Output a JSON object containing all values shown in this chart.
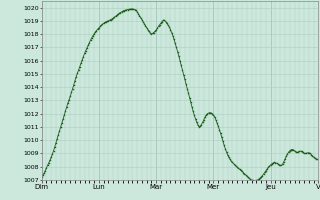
{
  "ylim": [
    1007,
    1020.5
  ],
  "yticks": [
    1007,
    1008,
    1009,
    1010,
    1011,
    1012,
    1013,
    1014,
    1015,
    1016,
    1017,
    1018,
    1019,
    1020
  ],
  "xtick_labels": [
    "Dim",
    "Lun",
    "Mar",
    "Mer",
    "Jeu",
    "V"
  ],
  "xtick_positions": [
    0,
    48,
    96,
    144,
    192,
    232
  ],
  "background_color": "#cce8dd",
  "grid_color": "#aaccbb",
  "line_color": "#1a5c1a",
  "marker_color": "#1a5c1a",
  "vline_color": "#8899aa",
  "pressure_data": [
    1007.2,
    1007.35,
    1007.5,
    1007.7,
    1007.9,
    1008.1,
    1008.3,
    1008.5,
    1008.7,
    1008.95,
    1009.2,
    1009.5,
    1009.8,
    1010.1,
    1010.4,
    1010.7,
    1011.0,
    1011.3,
    1011.6,
    1011.9,
    1012.2,
    1012.5,
    1012.8,
    1013.05,
    1013.3,
    1013.6,
    1013.9,
    1014.2,
    1014.5,
    1014.8,
    1015.05,
    1015.3,
    1015.55,
    1015.8,
    1016.05,
    1016.3,
    1016.55,
    1016.75,
    1016.95,
    1017.15,
    1017.35,
    1017.55,
    1017.72,
    1017.88,
    1018.02,
    1018.15,
    1018.27,
    1018.38,
    1018.48,
    1018.58,
    1018.67,
    1018.75,
    1018.82,
    1018.88,
    1018.93,
    1018.97,
    1019.0,
    1019.05,
    1019.1,
    1019.15,
    1019.2,
    1019.28,
    1019.35,
    1019.42,
    1019.5,
    1019.57,
    1019.63,
    1019.68,
    1019.73,
    1019.77,
    1019.8,
    1019.82,
    1019.85,
    1019.87,
    1019.88,
    1019.89,
    1019.9,
    1019.88,
    1019.85,
    1019.82,
    1019.7,
    1019.55,
    1019.4,
    1019.25,
    1019.1,
    1018.95,
    1018.8,
    1018.65,
    1018.5,
    1018.35,
    1018.2,
    1018.1,
    1018.0,
    1018.05,
    1018.12,
    1018.2,
    1018.3,
    1018.45,
    1018.6,
    1018.72,
    1018.85,
    1018.95,
    1019.05,
    1019.05,
    1018.95,
    1018.82,
    1018.7,
    1018.55,
    1018.35,
    1018.12,
    1017.88,
    1017.6,
    1017.3,
    1017.0,
    1016.68,
    1016.35,
    1016.0,
    1015.65,
    1015.3,
    1014.95,
    1014.6,
    1014.25,
    1013.9,
    1013.55,
    1013.2,
    1012.85,
    1012.5,
    1012.18,
    1011.88,
    1011.6,
    1011.35,
    1011.15,
    1011.0,
    1011.05,
    1011.18,
    1011.35,
    1011.55,
    1011.75,
    1011.9,
    1012.0,
    1012.05,
    1012.08,
    1012.05,
    1012.0,
    1011.9,
    1011.75,
    1011.55,
    1011.32,
    1011.07,
    1010.8,
    1010.52,
    1010.22,
    1009.92,
    1009.62,
    1009.35,
    1009.1,
    1008.88,
    1008.7,
    1008.55,
    1008.42,
    1008.32,
    1008.22,
    1008.13,
    1008.05,
    1007.98,
    1007.9,
    1007.82,
    1007.74,
    1007.65,
    1007.56,
    1007.47,
    1007.38,
    1007.29,
    1007.2,
    1007.12,
    1007.05,
    1007.0,
    1006.97,
    1006.95,
    1006.95,
    1006.97,
    1007.0,
    1007.06,
    1007.14,
    1007.22,
    1007.32,
    1007.44,
    1007.57,
    1007.7,
    1007.83,
    1007.95,
    1008.05,
    1008.15,
    1008.22,
    1008.28,
    1008.32,
    1008.3,
    1008.27,
    1008.22,
    1008.15,
    1008.1,
    1008.1,
    1008.2,
    1008.38,
    1008.58,
    1008.78,
    1008.95,
    1009.1,
    1009.2,
    1009.28,
    1009.3,
    1009.28,
    1009.2,
    1009.12,
    1009.08,
    1009.1,
    1009.15,
    1009.18,
    1009.15,
    1009.08,
    1009.0,
    1009.0,
    1009.02,
    1009.05,
    1009.05,
    1009.0,
    1008.92,
    1008.82,
    1008.72,
    1008.65,
    1008.6,
    1008.55
  ]
}
